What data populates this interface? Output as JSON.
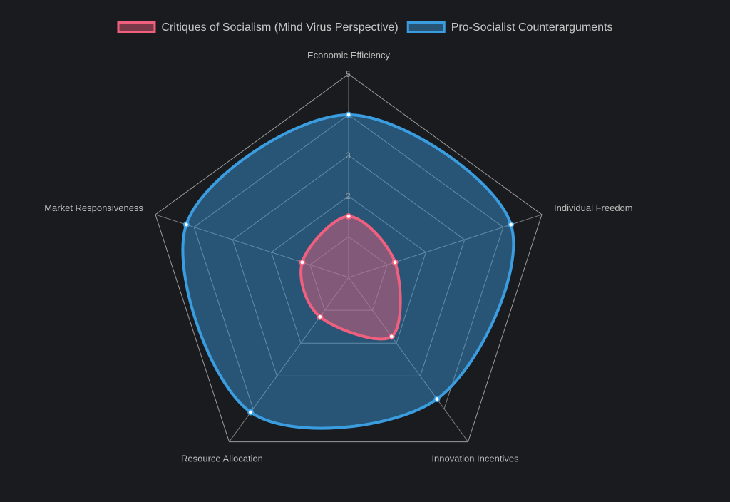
{
  "chart_data": {
    "type": "radar",
    "categories": [
      "Economic Efficiency",
      "Individual Freedom",
      "Innovation Incentives",
      "Resource Allocation",
      "Market Responsiveness"
    ],
    "series": [
      {
        "name": "Critiques of Socialism (Mind Virus Perspective)",
        "values": [
          1.5,
          1.2,
          1.8,
          1.2,
          1.2
        ],
        "color": "#f0607e"
      },
      {
        "name": "Pro-Socialist Counterarguments",
        "values": [
          4,
          4.2,
          3.7,
          4.1,
          4.2
        ],
        "color": "#3a9de0"
      }
    ],
    "r_range": [
      0,
      5
    ],
    "ticks": [
      "2",
      "3",
      "5"
    ],
    "legend_position": "top",
    "grid": true
  }
}
